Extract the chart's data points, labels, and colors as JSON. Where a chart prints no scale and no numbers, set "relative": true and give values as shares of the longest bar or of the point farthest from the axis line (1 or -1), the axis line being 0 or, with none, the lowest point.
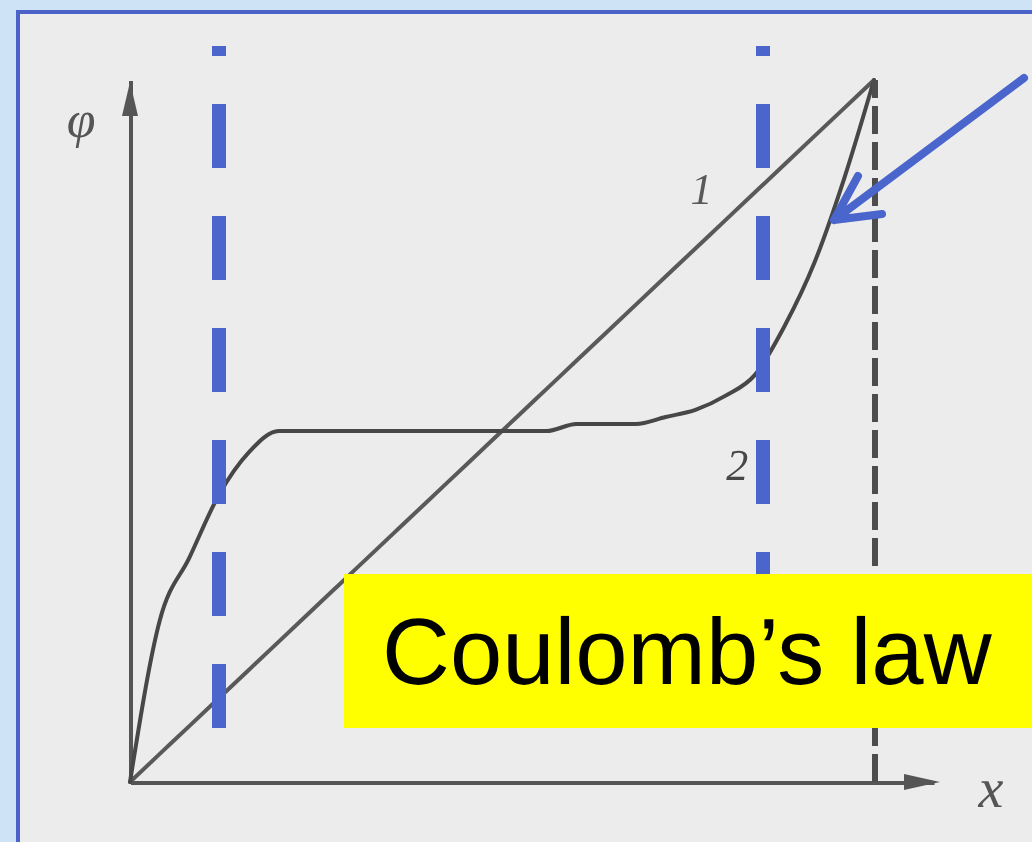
{
  "chart_data": {
    "type": "line",
    "relative": true,
    "xlabel": "x",
    "ylabel": "φ",
    "categories": [
      null,
      null,
      null,
      null,
      null,
      null,
      null,
      null,
      null,
      null,
      null,
      null,
      null,
      null,
      null,
      null,
      null,
      null,
      null,
      null,
      null,
      null,
      null,
      null,
      null,
      null,
      null,
      null
    ],
    "series": [
      {
        "name": "1",
        "color": "#595959",
        "values": [
          0,
          0.04,
          0.08,
          0.12,
          0.16,
          0.2,
          0.24,
          0.28,
          0.32,
          0.36,
          0.4,
          0.44,
          0.48,
          0.52,
          0.56,
          0.6,
          0.64,
          0.68,
          0.72,
          0.76,
          0.8,
          0.84,
          0.88,
          0.92,
          0.96,
          1,
          null,
          null
        ]
      },
      {
        "name": "2",
        "color": "#474747",
        "values": [
          0,
          0.23,
          0.32,
          0.41,
          0.47,
          0.5,
          0.5,
          0.5,
          0.5,
          0.5,
          0.5,
          0.5,
          0.5,
          0.5,
          0.5,
          0.51,
          0.51,
          0.51,
          0.52,
          0.53,
          0.55,
          0.58,
          0.65,
          0.74,
          0.86,
          1,
          null,
          null
        ]
      }
    ],
    "annotations": [
      "Coulomb’s law"
    ]
  }
}
